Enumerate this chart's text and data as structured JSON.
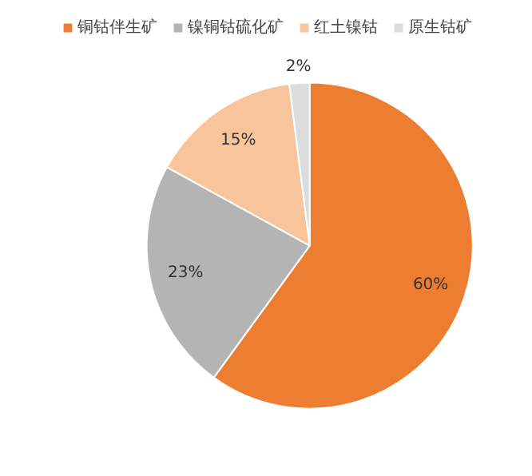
{
  "chart_data": {
    "type": "pie",
    "categories": [
      "铜钴伴生矿",
      "镍铜钴硫化矿",
      "红土镍钴",
      "原生钴矿"
    ],
    "values": [
      60,
      23,
      15,
      2
    ],
    "colors": [
      "#ed7d31",
      "#b4b4b4",
      "#f8c49c",
      "#dcdcdc"
    ],
    "value_labels": [
      "60%",
      "23%",
      "15%",
      "2%"
    ],
    "legend": "top"
  }
}
